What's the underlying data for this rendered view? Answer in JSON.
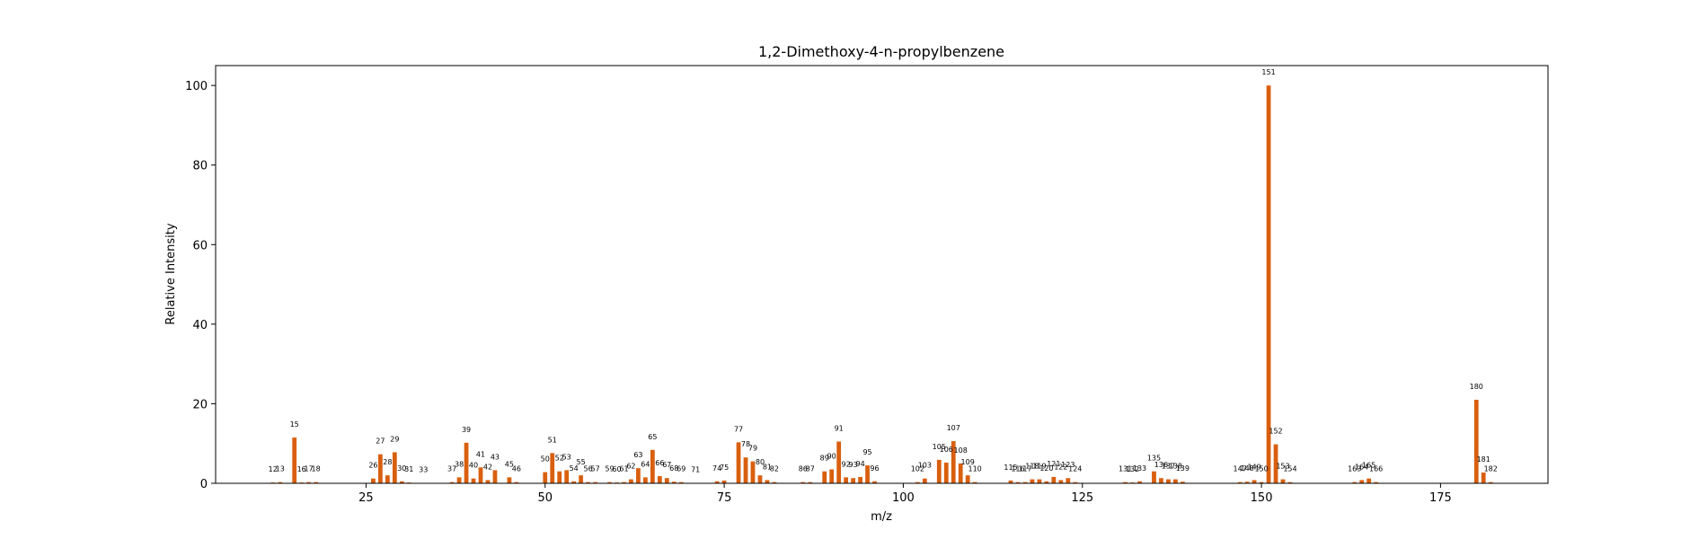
{
  "chart_data": {
    "type": "bar",
    "title": "1,2-Dimethoxy-4-n-propylbenzene",
    "xlabel": "m/z",
    "ylabel": "Relative Intensity",
    "xlim": [
      4,
      190
    ],
    "ylim": [
      0,
      105
    ],
    "xticks": [
      25,
      50,
      75,
      100,
      125,
      150,
      175
    ],
    "yticks": [
      0,
      20,
      40,
      60,
      80,
      100
    ],
    "grid": false,
    "color": "#d95f0e",
    "points": [
      {
        "mz": 12,
        "intensity": 0.2
      },
      {
        "mz": 13,
        "intensity": 0.3
      },
      {
        "mz": 15,
        "intensity": 11.5
      },
      {
        "mz": 16,
        "intensity": 0.2
      },
      {
        "mz": 17,
        "intensity": 0.3
      },
      {
        "mz": 18,
        "intensity": 0.3
      },
      {
        "mz": 26,
        "intensity": 1.2
      },
      {
        "mz": 27,
        "intensity": 7.3
      },
      {
        "mz": 28,
        "intensity": 2.0
      },
      {
        "mz": 29,
        "intensity": 7.8
      },
      {
        "mz": 30,
        "intensity": 0.5
      },
      {
        "mz": 31,
        "intensity": 0.2
      },
      {
        "mz": 33,
        "intensity": 0.1
      },
      {
        "mz": 37,
        "intensity": 0.3
      },
      {
        "mz": 38,
        "intensity": 1.5
      },
      {
        "mz": 39,
        "intensity": 10.2
      },
      {
        "mz": 40,
        "intensity": 1.2
      },
      {
        "mz": 41,
        "intensity": 4.0
      },
      {
        "mz": 42,
        "intensity": 0.8
      },
      {
        "mz": 43,
        "intensity": 3.3
      },
      {
        "mz": 45,
        "intensity": 1.5
      },
      {
        "mz": 46,
        "intensity": 0.3
      },
      {
        "mz": 50,
        "intensity": 2.8
      },
      {
        "mz": 51,
        "intensity": 7.6
      },
      {
        "mz": 52,
        "intensity": 3.0
      },
      {
        "mz": 53,
        "intensity": 3.3
      },
      {
        "mz": 54,
        "intensity": 0.5
      },
      {
        "mz": 55,
        "intensity": 2.0
      },
      {
        "mz": 56,
        "intensity": 0.3
      },
      {
        "mz": 57,
        "intensity": 0.3
      },
      {
        "mz": 59,
        "intensity": 0.3
      },
      {
        "mz": 60,
        "intensity": 0.2
      },
      {
        "mz": 61,
        "intensity": 0.3
      },
      {
        "mz": 62,
        "intensity": 1.0
      },
      {
        "mz": 63,
        "intensity": 3.8
      },
      {
        "mz": 64,
        "intensity": 1.5
      },
      {
        "mz": 65,
        "intensity": 8.4
      },
      {
        "mz": 66,
        "intensity": 1.8
      },
      {
        "mz": 67,
        "intensity": 1.3
      },
      {
        "mz": 68,
        "intensity": 0.4
      },
      {
        "mz": 69,
        "intensity": 0.3
      },
      {
        "mz": 71,
        "intensity": 0.1
      },
      {
        "mz": 74,
        "intensity": 0.5
      },
      {
        "mz": 75,
        "intensity": 0.7
      },
      {
        "mz": 77,
        "intensity": 10.3
      },
      {
        "mz": 78,
        "intensity": 6.5
      },
      {
        "mz": 79,
        "intensity": 5.5
      },
      {
        "mz": 80,
        "intensity": 2.0
      },
      {
        "mz": 81,
        "intensity": 0.8
      },
      {
        "mz": 82,
        "intensity": 0.3
      },
      {
        "mz": 86,
        "intensity": 0.3
      },
      {
        "mz": 87,
        "intensity": 0.3
      },
      {
        "mz": 89,
        "intensity": 3.0
      },
      {
        "mz": 90,
        "intensity": 3.5
      },
      {
        "mz": 91,
        "intensity": 10.5
      },
      {
        "mz": 92,
        "intensity": 1.5
      },
      {
        "mz": 93,
        "intensity": 1.3
      },
      {
        "mz": 94,
        "intensity": 1.6
      },
      {
        "mz": 95,
        "intensity": 4.5
      },
      {
        "mz": 96,
        "intensity": 0.5
      },
      {
        "mz": 102,
        "intensity": 0.3
      },
      {
        "mz": 103,
        "intensity": 1.2
      },
      {
        "mz": 105,
        "intensity": 5.9
      },
      {
        "mz": 106,
        "intensity": 5.2
      },
      {
        "mz": 107,
        "intensity": 10.6
      },
      {
        "mz": 108,
        "intensity": 5.0
      },
      {
        "mz": 109,
        "intensity": 2.0
      },
      {
        "mz": 110,
        "intensity": 0.3
      },
      {
        "mz": 115,
        "intensity": 0.7
      },
      {
        "mz": 116,
        "intensity": 0.3
      },
      {
        "mz": 117,
        "intensity": 0.3
      },
      {
        "mz": 118,
        "intensity": 1.0
      },
      {
        "mz": 119,
        "intensity": 1.0
      },
      {
        "mz": 120,
        "intensity": 0.5
      },
      {
        "mz": 121,
        "intensity": 1.6
      },
      {
        "mz": 122,
        "intensity": 0.8
      },
      {
        "mz": 123,
        "intensity": 1.3
      },
      {
        "mz": 124,
        "intensity": 0.3
      },
      {
        "mz": 131,
        "intensity": 0.3
      },
      {
        "mz": 132,
        "intensity": 0.2
      },
      {
        "mz": 133,
        "intensity": 0.5
      },
      {
        "mz": 135,
        "intensity": 3.0
      },
      {
        "mz": 136,
        "intensity": 1.3
      },
      {
        "mz": 137,
        "intensity": 1.0
      },
      {
        "mz": 138,
        "intensity": 1.0
      },
      {
        "mz": 139,
        "intensity": 0.4
      },
      {
        "mz": 147,
        "intensity": 0.3
      },
      {
        "mz": 148,
        "intensity": 0.4
      },
      {
        "mz": 149,
        "intensity": 0.8
      },
      {
        "mz": 150,
        "intensity": 0.3
      },
      {
        "mz": 151,
        "intensity": 100
      },
      {
        "mz": 152,
        "intensity": 9.8
      },
      {
        "mz": 153,
        "intensity": 1.0
      },
      {
        "mz": 154,
        "intensity": 0.3
      },
      {
        "mz": 163,
        "intensity": 0.3
      },
      {
        "mz": 164,
        "intensity": 0.8
      },
      {
        "mz": 165,
        "intensity": 1.2
      },
      {
        "mz": 166,
        "intensity": 0.3
      },
      {
        "mz": 180,
        "intensity": 21.0
      },
      {
        "mz": 181,
        "intensity": 2.7
      },
      {
        "mz": 182,
        "intensity": 0.3
      }
    ]
  }
}
